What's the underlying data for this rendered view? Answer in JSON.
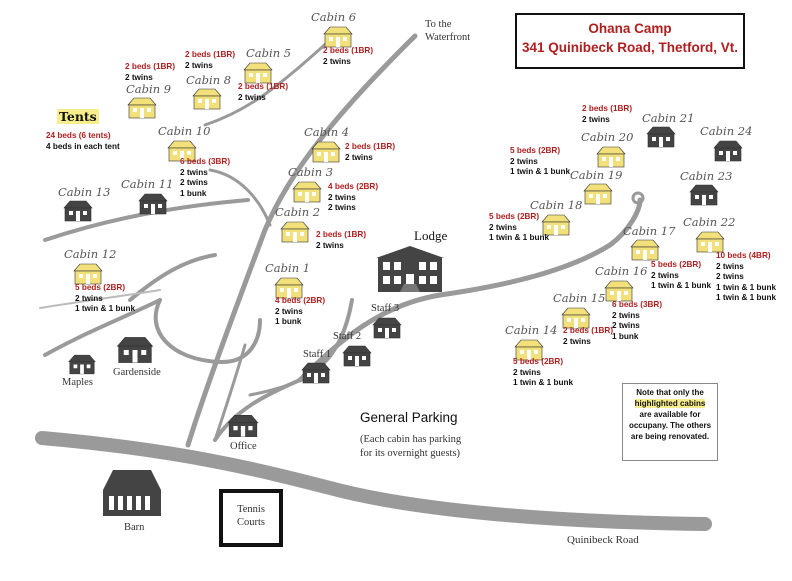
{
  "title": {
    "line1": "Ohana Camp",
    "line2": "341 Quinibeck Road, Thetford, Vt."
  },
  "colors": {
    "highlight": "#f7ed8a",
    "available_cabin": "#f2e07a",
    "renovating_cabin": "#444444",
    "capacity_text": "#b01e1e",
    "road": "#9a9a9a"
  },
  "tents": {
    "title": "Tents",
    "capacity": "24 beds (6 tents)",
    "detail": "4 beds in each tent"
  },
  "cabins": [
    {
      "id": "cabin-6",
      "name": "Cabin  6",
      "available": true,
      "capacity": "2 beds (1BR)",
      "beds": [
        "2 twins"
      ]
    },
    {
      "id": "cabin-5",
      "name": "Cabin 5",
      "available": true,
      "capacity": "2 beds (1BR)",
      "beds": [
        "2 twins"
      ]
    },
    {
      "id": "cabin-8",
      "name": "Cabin 8",
      "available": true,
      "capacity": "2 beds (1BR)",
      "beds": [
        "2 twins"
      ]
    },
    {
      "id": "cabin-9",
      "name": "Cabin 9",
      "available": true,
      "capacity": "2 beds (1BR)",
      "beds": [
        "2 twins"
      ]
    },
    {
      "id": "cabin-10",
      "name": "Cabin 10",
      "available": true,
      "capacity": "6 beds (3BR)",
      "beds": [
        "2 twins",
        "2 twins",
        "1 bunk"
      ]
    },
    {
      "id": "cabin-4",
      "name": "Cabin 4",
      "available": true,
      "capacity": "2 beds (1BR)",
      "beds": [
        "2 twins"
      ]
    },
    {
      "id": "cabin-3",
      "name": "Cabin 3",
      "available": true,
      "capacity": "4 beds (2BR)",
      "beds": [
        "2 twins",
        "2 twins"
      ]
    },
    {
      "id": "cabin-2",
      "name": "Cabin 2",
      "available": true,
      "capacity": "2 beds (1BR)",
      "beds": [
        "2 twins"
      ]
    },
    {
      "id": "cabin-1",
      "name": "Cabin 1",
      "available": true,
      "capacity": "4 beds (2BR)",
      "beds": [
        "2 twins",
        "1 bunk"
      ]
    },
    {
      "id": "cabin-12",
      "name": "Cabin 12",
      "available": true,
      "capacity": "5 beds (2BR)",
      "beds": [
        "2 twins",
        "1 twin & 1 bunk"
      ]
    },
    {
      "id": "cabin-13",
      "name": "Cabin 13",
      "available": false
    },
    {
      "id": "cabin-11",
      "name": "Cabin 11",
      "available": false
    },
    {
      "id": "cabin-21",
      "name": "Cabin 21",
      "available": false
    },
    {
      "id": "cabin-24",
      "name": "Cabin 24",
      "available": false
    },
    {
      "id": "cabin-23",
      "name": "Cabin 23",
      "available": false
    },
    {
      "id": "cabin-20",
      "name": "Cabin 20",
      "available": true,
      "capacity": "2 beds (1BR)",
      "beds": [
        "2 twins"
      ]
    },
    {
      "id": "cabin-19",
      "name": "Cabin 19",
      "available": true,
      "capacity": "5 beds (2BR)",
      "beds": [
        "2 twins",
        "1 twin & 1 bunk"
      ]
    },
    {
      "id": "cabin-18",
      "name": "Cabin 18",
      "available": true,
      "capacity": "5 beds (2BR)",
      "beds": [
        "2 twins",
        "1 twin & 1 bunk"
      ]
    },
    {
      "id": "cabin-17",
      "name": "Cabin 17",
      "available": true,
      "capacity": "5 beds (2BR)",
      "beds": [
        "2 twins",
        "1 twin & 1 bunk"
      ]
    },
    {
      "id": "cabin-22",
      "name": "Cabin 22",
      "available": true,
      "capacity": "10 beds (4BR)",
      "beds": [
        "2 twins",
        "2 twins",
        "1 twin & 1 bunk",
        "1 twin & 1 bunk"
      ]
    },
    {
      "id": "cabin-16",
      "name": "Cabin 16",
      "available": true,
      "capacity": "6 beds (3BR)",
      "beds": [
        "2 twins",
        "2 twins",
        "1 bunk"
      ]
    },
    {
      "id": "cabin-15",
      "name": "Cabin 15",
      "available": true,
      "capacity": "2 beds (1BR)",
      "beds": [
        "2 twins"
      ]
    },
    {
      "id": "cabin-14",
      "name": "Cabin 14",
      "available": true,
      "capacity": "5 beds (2BR)",
      "beds": [
        "2 twins",
        "1 twin & 1 bunk"
      ]
    }
  ],
  "buildings": {
    "lodge": "Lodge",
    "staff1": "Staff 1",
    "staff2": "Staff 2",
    "staff3": "Staff 3",
    "office": "Office",
    "barn": "Barn",
    "maples": "Maples",
    "gardenside": "Gardenside",
    "tennis": "Tennis\nCourts"
  },
  "waterfront": {
    "line1": "To the",
    "line2": "Waterfront"
  },
  "parking": {
    "title": "General Parking",
    "line1": "(Each cabin has parking",
    "line2": "for its overnight guests)"
  },
  "road_name": "Quinibeck Road",
  "note": {
    "before": "Note that only the",
    "highlight": "highlighted cabins",
    "after1": "are available for",
    "after2": "occupany. The others",
    "after3": "are being renovated."
  }
}
